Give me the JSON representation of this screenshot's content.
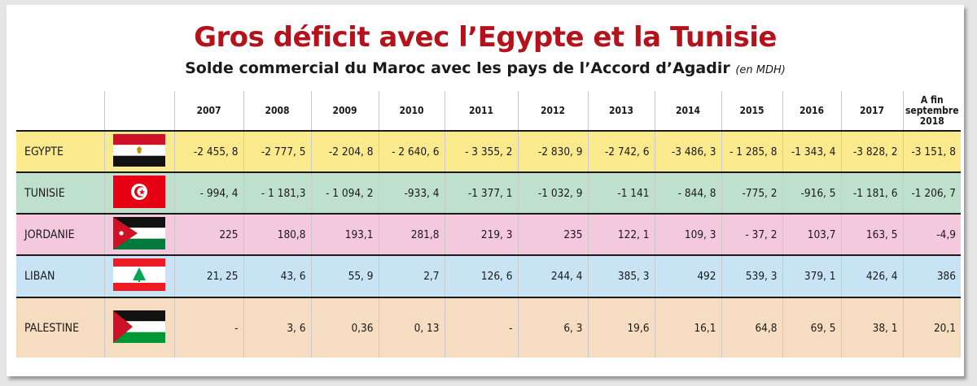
{
  "chart_data": {
    "type": "table",
    "title": "Gros déficit avec l’Egypte et la Tunisie",
    "subtitle": "Solde commercial du Maroc avec les pays de l’Accord d’Agadir",
    "unit": "(en MDH)",
    "columns": [
      "2007",
      "2008",
      "2009",
      "2010",
      "2011",
      "2012",
      "2013",
      "2014",
      "2015",
      "2016",
      "2017",
      "A fin septembre 2018"
    ],
    "rows": [
      {
        "country": "EGYPTE",
        "flag": "egypt-flag",
        "values": [
          "-2 455, 8",
          "-2 777, 5",
          "-2 204, 8",
          "- 2 640, 6",
          "- 3 355, 2",
          "-2 830, 9",
          "-2 742, 6",
          "-3 486, 3",
          "- 1 285, 8",
          "-1 343, 4",
          "-3 828, 2",
          "-3 151, 8"
        ]
      },
      {
        "country": "TUNISIE",
        "flag": "tunisia-flag",
        "values": [
          "- 994, 4",
          "- 1 181,3",
          "- 1 094, 2",
          "-933, 4",
          "-1 377, 1",
          "-1 032, 9",
          "-1 141",
          "- 844, 8",
          "-775, 2",
          "-916, 5",
          "-1 181, 6",
          "-1 206, 7"
        ]
      },
      {
        "country": "JORDANIE",
        "flag": "jordan-flag",
        "values": [
          "225",
          "180,8",
          "193,1",
          "281,8",
          "219, 3",
          "235",
          "122, 1",
          "109, 3",
          "- 37, 2",
          "103,7",
          "163, 5",
          "-4,9"
        ]
      },
      {
        "country": "LIBAN",
        "flag": "lebanon-flag",
        "values": [
          "21, 25",
          "43, 6",
          "55, 9",
          "2,7",
          "126, 6",
          "244, 4",
          "385, 3",
          "492",
          "539, 3",
          "379, 1",
          "426, 4",
          "386"
        ]
      },
      {
        "country": "PALESTINE",
        "flag": "palestine-flag",
        "values": [
          "-",
          "3, 6",
          "0,36",
          "0, 13",
          "-",
          "6, 3",
          "19,6",
          "16,1",
          "64,8",
          "69, 5",
          "38, 1",
          "20,1"
        ]
      }
    ]
  },
  "colors": {
    "title": "#b5121b",
    "row_egypte": "#fbe98e",
    "row_tunisie": "#bfe0cc",
    "row_jordanie": "#f4c8dd",
    "row_liban": "#c8e4f4",
    "row_palestine": "#f6dcc0"
  }
}
